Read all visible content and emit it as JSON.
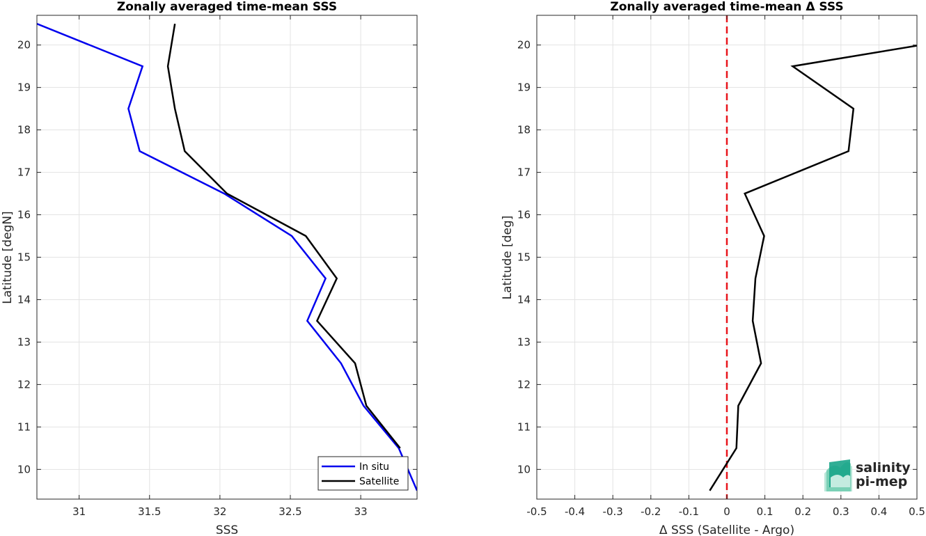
{
  "chart_data": [
    {
      "type": "line",
      "title": "Zonally averaged time-mean SSS",
      "xlabel": "SSS",
      "ylabel": "Latitude [degN]",
      "xlim": [
        30.7,
        33.4
      ],
      "ylim": [
        9.3,
        20.7
      ],
      "xticks": [
        31,
        31.5,
        32,
        32.5,
        33
      ],
      "xtick_labels": [
        "31",
        "31.5",
        "32",
        "32.5",
        "33"
      ],
      "yticks": [
        10,
        11,
        12,
        13,
        14,
        15,
        16,
        17,
        18,
        19,
        20
      ],
      "ytick_labels": [
        "10",
        "11",
        "12",
        "13",
        "14",
        "15",
        "16",
        "17",
        "18",
        "19",
        "20"
      ],
      "grid": true,
      "legend": "bottom-right",
      "series": [
        {
          "name": "In situ",
          "color": "#0000ee",
          "x": [
            33.4,
            33.27,
            33.02,
            32.86,
            32.62,
            32.75,
            32.51,
            32.03,
            31.43,
            31.35,
            31.45,
            30.7
          ],
          "y": [
            9.5,
            10.5,
            11.5,
            12.5,
            13.5,
            14.5,
            15.5,
            16.5,
            17.5,
            18.5,
            19.5,
            20.5
          ]
        },
        {
          "name": "Satellite",
          "color": "#000000",
          "x": [
            33.28,
            33.04,
            32.96,
            32.69,
            32.83,
            32.61,
            32.05,
            31.75,
            31.68,
            31.63,
            31.68
          ],
          "y": [
            10.5,
            11.5,
            12.5,
            13.5,
            14.5,
            15.5,
            16.5,
            17.5,
            18.5,
            19.5,
            20.5
          ]
        }
      ]
    },
    {
      "type": "line",
      "title": "Zonally averaged time-mean Δ SSS",
      "xlabel": "Δ SSS (Satellite - Argo)",
      "ylabel": "Latitude [deg]",
      "xlim": [
        -0.5,
        0.5
      ],
      "ylim": [
        9.3,
        20.7
      ],
      "xticks": [
        -0.5,
        -0.4,
        -0.3,
        -0.2,
        -0.1,
        0,
        0.1,
        0.2,
        0.3,
        0.4,
        0.5
      ],
      "xtick_labels": [
        "-0.5",
        "-0.4",
        "-0.3",
        "-0.2",
        "-0.1",
        "0",
        "0.1",
        "0.2",
        "0.3",
        "0.4",
        "0.5"
      ],
      "yticks": [
        10,
        11,
        12,
        13,
        14,
        15,
        16,
        17,
        18,
        19,
        20
      ],
      "ytick_labels": [
        "10",
        "11",
        "12",
        "13",
        "14",
        "15",
        "16",
        "17",
        "18",
        "19",
        "20"
      ],
      "grid": true,
      "reference_line": {
        "x": 0,
        "color": "#e8141b",
        "style": "dashed"
      },
      "series": [
        {
          "color": "#000000",
          "x": [
            -0.045,
            0.025,
            0.03,
            0.09,
            0.068,
            0.075,
            0.098,
            0.047,
            0.32,
            0.333,
            0.173,
            0.51
          ],
          "y": [
            9.5,
            10.5,
            11.5,
            12.5,
            13.5,
            14.5,
            15.5,
            16.5,
            17.5,
            18.5,
            19.5,
            20.0
          ]
        }
      ]
    }
  ],
  "logo": {
    "line1": "salinity",
    "line2": "pi-mep",
    "color": "#1aa589"
  }
}
